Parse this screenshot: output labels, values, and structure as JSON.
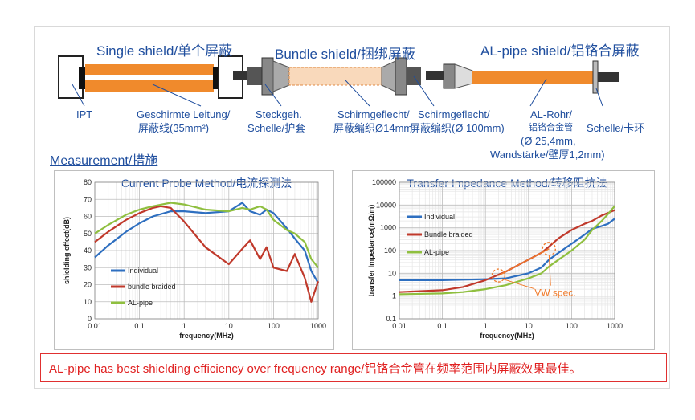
{
  "diagram": {
    "single_title": "Single shield/单个屏蔽",
    "bundle_title": "Bundle shield/捆绑屏蔽",
    "alpipe_title": "AL-pipe shield/铝铬合屏蔽",
    "labels": {
      "ipt": "IPT",
      "geschirmte": "Geschirmte Leitung/",
      "geschirmte2": "屏蔽线(35mm²)",
      "steckgeh": "Steckgeh.",
      "schelle1": "Schelle/护套",
      "schirm1": "Schirmgeflecht/",
      "schirm1b": "屏蔽编织Ø14mm",
      "schirm2": "Schirmgeflecht/",
      "schirm2b": "屏蔽编织(Ø 100mm)",
      "alrohr": "AL-Rohr/",
      "alrohr2": "铝铬合金管",
      "alrohr3": "(Ø 25,4mm,",
      "alrohr4": "Wandstärke/壁厚1,2mm)",
      "schelle2": "Schelle/卡环"
    },
    "colors": {
      "cable": "#f08a2c",
      "accent_blue": "#1f4e9e"
    }
  },
  "measurement_title": "Measurement/措施",
  "banner": "AL-pipe has best shielding efficiency over frequency range/铝铬合金管在频率范围内屏蔽效果最佳。",
  "chart_data": [
    {
      "type": "line",
      "title": "Current Probe Method/电流探测法",
      "xlabel": "frequency(MHz)",
      "ylabel": "shielding effect(dB)",
      "xscale": "log",
      "xlim": [
        0.01,
        1000
      ],
      "ylim": [
        0,
        80
      ],
      "xticks": [
        "0.01",
        "0.1",
        "1",
        "10",
        "100",
        "1000"
      ],
      "yticks": [
        "0",
        "10",
        "20",
        "30",
        "40",
        "50",
        "60",
        "70",
        "80"
      ],
      "grid": true,
      "legend": "bottom-left",
      "series": [
        {
          "name": "Individual",
          "color": "#2e6fc0",
          "x": [
            0.01,
            0.02,
            0.05,
            0.1,
            0.2,
            0.5,
            1,
            3,
            10,
            20,
            30,
            50,
            70,
            100,
            200,
            300,
            500,
            700,
            1000
          ],
          "y": [
            36,
            43,
            51,
            56,
            60,
            63,
            63,
            62,
            63,
            68,
            63,
            61,
            64,
            62,
            53,
            47,
            40,
            28,
            21
          ]
        },
        {
          "name": "bundle braided",
          "color": "#c0392b",
          "x": [
            0.01,
            0.02,
            0.05,
            0.1,
            0.2,
            0.3,
            0.5,
            1,
            3,
            10,
            20,
            30,
            50,
            70,
            100,
            200,
            300,
            500,
            700,
            1000
          ],
          "y": [
            45,
            51,
            58,
            62,
            65,
            66,
            65,
            57,
            42,
            32,
            41,
            46,
            35,
            42,
            30,
            28,
            38,
            24,
            10,
            22
          ]
        },
        {
          "name": "AL-pipe",
          "color": "#8fbf3f",
          "x": [
            0.01,
            0.02,
            0.05,
            0.1,
            0.2,
            0.5,
            1,
            3,
            10,
            20,
            30,
            50,
            70,
            100,
            200,
            300,
            500,
            700,
            1000
          ],
          "y": [
            50,
            55,
            61,
            64,
            66,
            68,
            67,
            64,
            63,
            65,
            64,
            66,
            64,
            58,
            52,
            50,
            45,
            35,
            30
          ]
        }
      ]
    },
    {
      "type": "line",
      "title": "Transfer Impedance Method/转移阻抗法",
      "xlabel": "frequency(MHz)",
      "ylabel": "transfer Impedance(mΩ/m)",
      "xscale": "log",
      "yscale": "log",
      "xlim": [
        0.01,
        1000
      ],
      "ylim": [
        0.1,
        100000
      ],
      "xticks": [
        "0.01",
        "0.1",
        "1",
        "10",
        "100",
        "1000"
      ],
      "yticks": [
        "0.1",
        "1",
        "10",
        "100",
        "1000",
        "10000",
        "100000"
      ],
      "grid": true,
      "legend": "left",
      "annotation": "VW spec.",
      "series": [
        {
          "name": "Individual",
          "color": "#2e6fc0",
          "x": [
            0.01,
            0.1,
            1,
            3,
            10,
            20,
            30,
            50,
            100,
            200,
            300,
            500,
            700,
            1000
          ],
          "y": [
            5,
            5,
            5.5,
            6,
            10,
            18,
            40,
            80,
            200,
            500,
            900,
            1200,
            1500,
            2500
          ]
        },
        {
          "name": "Bundle braided",
          "color": "#c0392b",
          "x": [
            0.01,
            0.1,
            0.3,
            1,
            3,
            10,
            20,
            30,
            50,
            100,
            200,
            300,
            500,
            700,
            1000
          ],
          "y": [
            1.5,
            1.8,
            2.5,
            5,
            12,
            40,
            80,
            150,
            350,
            800,
            1500,
            2000,
            3500,
            4500,
            6000
          ]
        },
        {
          "name": "AL-pipe",
          "color": "#8fbf3f",
          "x": [
            0.01,
            0.1,
            0.3,
            1,
            3,
            10,
            20,
            30,
            50,
            100,
            200,
            300,
            500,
            700,
            1000
          ],
          "y": [
            1.2,
            1.3,
            1.5,
            2,
            3,
            6,
            10,
            20,
            40,
            100,
            300,
            800,
            2000,
            4000,
            9000
          ]
        }
      ]
    }
  ]
}
